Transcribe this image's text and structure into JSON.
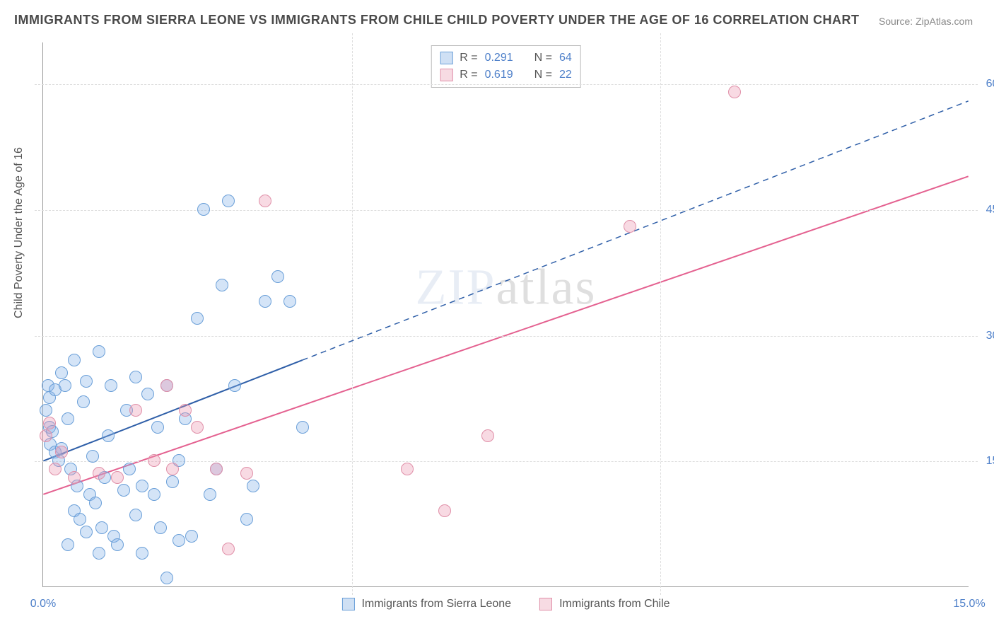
{
  "title": "IMMIGRANTS FROM SIERRA LEONE VS IMMIGRANTS FROM CHILE CHILD POVERTY UNDER THE AGE OF 16 CORRELATION CHART",
  "source": "Source: ZipAtlas.com",
  "y_axis_label": "Child Poverty Under the Age of 16",
  "watermark": "ZIPatlas",
  "chart": {
    "type": "scatter",
    "background_color": "#ffffff",
    "grid_color": "#dddddd",
    "axis_color": "#999999",
    "tick_color": "#4d7fc9",
    "tick_fontsize": 16,
    "x_range": [
      0,
      15
    ],
    "y_range": [
      0,
      65
    ],
    "x_ticks": [
      {
        "v": 0,
        "label": "0.0%"
      },
      {
        "v": 15,
        "label": "15.0%"
      }
    ],
    "y_ticks": [
      {
        "v": 15,
        "label": "15.0%"
      },
      {
        "v": 30,
        "label": "30.0%"
      },
      {
        "v": 45,
        "label": "45.0%"
      },
      {
        "v": 60,
        "label": "60.0%"
      }
    ],
    "series": [
      {
        "name": "Immigrants from Sierra Leone",
        "short": "s1",
        "fill": "rgba(133,177,232,0.35)",
        "stroke": "#6a9fd8",
        "swatch_bg": "#cfe0f4",
        "swatch_border": "#6a9fd8",
        "R": "0.291",
        "N": "64",
        "trend": {
          "x1": 0,
          "y1": 15,
          "x2": 15,
          "y2": 58,
          "solid_until_x": 4.2,
          "line_color": "#2f5fa8",
          "line_width": 2
        },
        "points": [
          [
            0.05,
            21
          ],
          [
            0.08,
            24
          ],
          [
            0.1,
            22.5
          ],
          [
            0.1,
            19
          ],
          [
            0.12,
            17
          ],
          [
            0.15,
            18.5
          ],
          [
            0.2,
            16
          ],
          [
            0.2,
            23.5
          ],
          [
            0.25,
            15
          ],
          [
            0.3,
            25.5
          ],
          [
            0.3,
            16.5
          ],
          [
            0.35,
            24
          ],
          [
            0.4,
            20
          ],
          [
            0.45,
            14
          ],
          [
            0.5,
            9
          ],
          [
            0.5,
            27
          ],
          [
            0.55,
            12
          ],
          [
            0.6,
            8
          ],
          [
            0.65,
            22
          ],
          [
            0.7,
            6.5
          ],
          [
            0.7,
            24.5
          ],
          [
            0.75,
            11
          ],
          [
            0.8,
            15.5
          ],
          [
            0.85,
            10
          ],
          [
            0.9,
            28
          ],
          [
            0.95,
            7
          ],
          [
            1.0,
            13
          ],
          [
            1.05,
            18
          ],
          [
            1.1,
            24
          ],
          [
            1.15,
            6
          ],
          [
            1.2,
            5
          ],
          [
            1.3,
            11.5
          ],
          [
            1.35,
            21
          ],
          [
            1.4,
            14
          ],
          [
            1.5,
            8.5
          ],
          [
            1.5,
            25
          ],
          [
            1.6,
            12
          ],
          [
            1.7,
            23
          ],
          [
            1.8,
            11
          ],
          [
            1.85,
            19
          ],
          [
            1.9,
            7
          ],
          [
            2.0,
            24
          ],
          [
            2.1,
            12.5
          ],
          [
            2.2,
            5.5
          ],
          [
            2.2,
            15
          ],
          [
            2.3,
            20
          ],
          [
            2.4,
            6
          ],
          [
            2.5,
            32
          ],
          [
            2.6,
            45
          ],
          [
            2.7,
            11
          ],
          [
            2.8,
            14
          ],
          [
            2.9,
            36
          ],
          [
            3.0,
            46
          ],
          [
            3.1,
            24
          ],
          [
            3.3,
            8
          ],
          [
            3.4,
            12
          ],
          [
            3.6,
            34
          ],
          [
            3.8,
            37
          ],
          [
            4.0,
            34
          ],
          [
            4.2,
            19
          ],
          [
            2.0,
            1
          ],
          [
            1.6,
            4
          ],
          [
            0.4,
            5
          ],
          [
            0.9,
            4
          ]
        ]
      },
      {
        "name": "Immigrants from Chile",
        "short": "s2",
        "fill": "rgba(235,150,175,0.35)",
        "stroke": "#e08fa8",
        "swatch_bg": "#f7dbe3",
        "swatch_border": "#e08fa8",
        "R": "0.619",
        "N": "22",
        "trend": {
          "x1": 0,
          "y1": 11,
          "x2": 15,
          "y2": 49,
          "solid_until_x": 15,
          "line_color": "#e46190",
          "line_width": 2
        },
        "points": [
          [
            0.05,
            18
          ],
          [
            0.1,
            19.5
          ],
          [
            0.2,
            14
          ],
          [
            0.3,
            16
          ],
          [
            0.5,
            13
          ],
          [
            0.9,
            13.5
          ],
          [
            1.2,
            13
          ],
          [
            1.5,
            21
          ],
          [
            1.8,
            15
          ],
          [
            2.0,
            24
          ],
          [
            2.1,
            14
          ],
          [
            2.3,
            21
          ],
          [
            2.5,
            19
          ],
          [
            2.8,
            14
          ],
          [
            3.0,
            4.5
          ],
          [
            3.3,
            13.5
          ],
          [
            3.6,
            46
          ],
          [
            5.9,
            14
          ],
          [
            6.5,
            9
          ],
          [
            7.2,
            18
          ],
          [
            9.5,
            43
          ],
          [
            11.2,
            59
          ]
        ]
      }
    ],
    "legend_top_labels": {
      "R": "R =",
      "N": "N ="
    },
    "legend_bottom": [
      {
        "label": "Immigrants from Sierra Leone",
        "series": 0
      },
      {
        "label": "Immigrants from Chile",
        "series": 1
      }
    ]
  }
}
